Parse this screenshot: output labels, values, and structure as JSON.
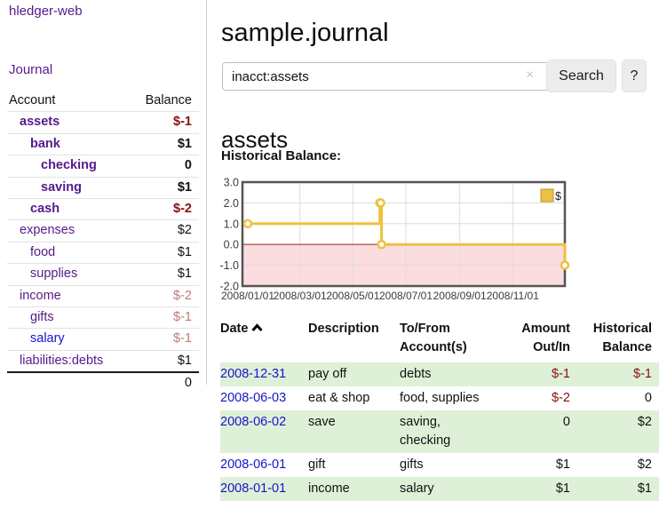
{
  "app": {
    "title": "hledger-web"
  },
  "colors": {
    "link_purple": "#551a8b",
    "link_blue": "#1414cc",
    "neg_strong": "#8b0f0f",
    "neg_faded": "#c07777",
    "row_stripe_green": "#dff0d8",
    "chart_line_gold": "#edc240",
    "chart_negative_fill": "#fbdcdf",
    "chart_zero_line": "#a33a3a",
    "chart_grid": "#dcdcdc",
    "chart_border": "#545454"
  },
  "sidebar": {
    "journal_link": "Journal",
    "table": {
      "account_header": "Account",
      "balance_header": "Balance",
      "rows": [
        {
          "name": "assets",
          "indent": 1,
          "bold": true,
          "link": "purple",
          "balance": "$-1",
          "balance_style": "neg_strong"
        },
        {
          "name": "bank",
          "indent": 2,
          "bold": true,
          "link": "purple",
          "balance": "$1",
          "balance_style": "black"
        },
        {
          "name": "checking",
          "indent": 3,
          "bold": true,
          "link": "purple",
          "balance": "0",
          "balance_style": "black"
        },
        {
          "name": "saving",
          "indent": 3,
          "bold": true,
          "link": "purple",
          "balance": "$1",
          "balance_style": "black"
        },
        {
          "name": "cash",
          "indent": 2,
          "bold": true,
          "link": "purple",
          "balance": "$-2",
          "balance_style": "neg_strong"
        },
        {
          "name": "expenses",
          "indent": 1,
          "bold": false,
          "link": "purple",
          "balance": "$2",
          "balance_style": "black"
        },
        {
          "name": "food",
          "indent": 2,
          "bold": false,
          "link": "purple",
          "balance": "$1",
          "balance_style": "black"
        },
        {
          "name": "supplies",
          "indent": 2,
          "bold": false,
          "link": "purple",
          "balance": "$1",
          "balance_style": "black"
        },
        {
          "name": "income",
          "indent": 1,
          "bold": false,
          "link": "purple",
          "balance": "$-2",
          "balance_style": "neg_faded"
        },
        {
          "name": "gifts",
          "indent": 2,
          "bold": false,
          "link": "purple",
          "balance": "$-1",
          "balance_style": "neg_faded"
        },
        {
          "name": "salary",
          "indent": 2,
          "bold": false,
          "link": "blue",
          "balance": "$-1",
          "balance_style": "neg_faded"
        },
        {
          "name": "liabilities:debts",
          "indent": 1,
          "bold": false,
          "link": "purple",
          "balance": "$1",
          "balance_style": "black"
        }
      ],
      "total": "0"
    }
  },
  "main": {
    "title": "sample.journal",
    "search": {
      "value": "inacct:assets",
      "clear_icon": "×",
      "button_label": "Search",
      "help_label": "?"
    },
    "account_heading": "assets",
    "chart_heading": "Historical Balance:"
  },
  "chart_data": {
    "type": "line",
    "title": "Historical Balance",
    "step": true,
    "legend": {
      "label": "$",
      "position": "top-right"
    },
    "series": [
      {
        "name": "$",
        "points": [
          {
            "date": "2008-01-01",
            "value": 1
          },
          {
            "date": "2008-06-01",
            "value": 2
          },
          {
            "date": "2008-06-02",
            "value": 2
          },
          {
            "date": "2008-06-03",
            "value": 0
          },
          {
            "date": "2008-12-31",
            "value": -1
          }
        ]
      }
    ],
    "ylim": [
      -2,
      3
    ],
    "y_ticks": [
      3.0,
      2.0,
      1.0,
      0.0,
      -1.0,
      -2.0
    ],
    "y_tick_labels": [
      "3.0",
      "2.0",
      "1.0",
      "0.0",
      "-1.0",
      "-2.0"
    ],
    "xlim": [
      "2008-01-01",
      "2008-12-31"
    ],
    "x_tick_dates": [
      "2008-01-01",
      "2008-03-01",
      "2008-05-01",
      "2008-07-01",
      "2008-09-01",
      "2008-11-01"
    ],
    "x_tick_labels": [
      "2008/01/01",
      "2008/03/01",
      "2008/05/01",
      "2008/07/01",
      "2008/09/01",
      "2008/11/01"
    ],
    "grid": true,
    "negative_region_shaded": true
  },
  "register": {
    "headers": {
      "date": "Date",
      "description": "Description",
      "accounts": "To/From\nAccount(s)",
      "amount": "Amount\nOut/In",
      "balance": "Historical\nBalance"
    },
    "rows": [
      {
        "date": "2008-12-31",
        "description": "pay off",
        "accounts": "debts",
        "amount": "$-1",
        "amount_style": "neg",
        "balance": "$-1",
        "balance_style": "neg"
      },
      {
        "date": "2008-06-03",
        "description": "eat & shop",
        "accounts": "food, supplies",
        "amount": "$-2",
        "amount_style": "neg",
        "balance": "0",
        "balance_style": "pos"
      },
      {
        "date": "2008-06-02",
        "description": "save",
        "accounts": "saving,\nchecking",
        "amount": "0",
        "amount_style": "pos",
        "balance": "$2",
        "balance_style": "pos"
      },
      {
        "date": "2008-06-01",
        "description": "gift",
        "accounts": "gifts",
        "amount": "$1",
        "amount_style": "pos",
        "balance": "$2",
        "balance_style": "pos"
      },
      {
        "date": "2008-01-01",
        "description": "income",
        "accounts": "salary",
        "amount": "$1",
        "amount_style": "pos",
        "balance": "$1",
        "balance_style": "pos"
      }
    ]
  }
}
